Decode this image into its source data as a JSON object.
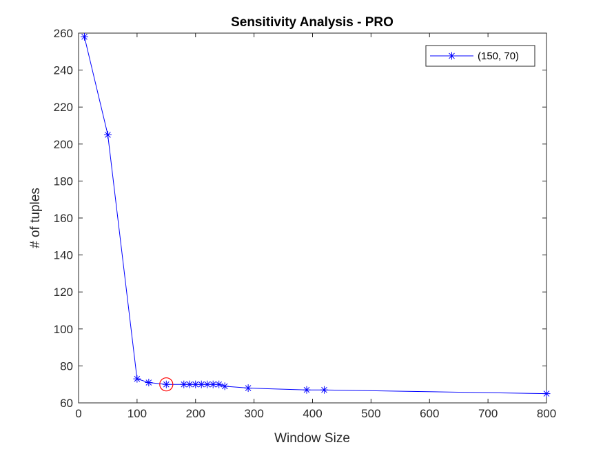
{
  "chart_data": {
    "type": "line",
    "title": "Sensitivity Analysis - PRO",
    "xlabel": "Window Size",
    "ylabel": "# of tuples",
    "xlim": [
      0,
      800
    ],
    "ylim": [
      60,
      260
    ],
    "xticks": [
      0,
      100,
      200,
      300,
      400,
      500,
      600,
      700,
      800
    ],
    "yticks": [
      60,
      80,
      100,
      120,
      140,
      160,
      180,
      200,
      220,
      240,
      260
    ],
    "grid": false,
    "legend_position": "top-right",
    "marker": "asterisk",
    "series": [
      {
        "name": "(150, 70)",
        "color": "#0000ff",
        "x": [
          10,
          50,
          100,
          120,
          150,
          180,
          190,
          200,
          210,
          220,
          230,
          240,
          250,
          290,
          390,
          420,
          800
        ],
        "y": [
          258,
          205,
          73,
          71,
          70,
          70,
          70,
          70,
          70,
          70,
          70,
          70,
          69,
          68,
          67,
          67,
          65
        ]
      }
    ],
    "highlight": {
      "x": 150,
      "y": 70,
      "color": "#ff0000",
      "shape": "circle"
    }
  }
}
